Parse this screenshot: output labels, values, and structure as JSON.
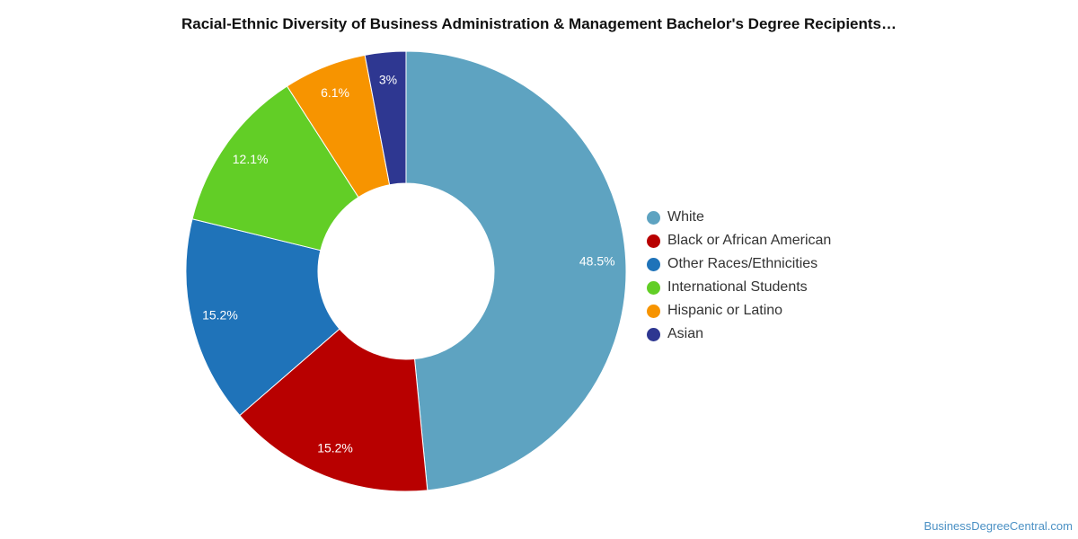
{
  "chart_data": {
    "type": "pie",
    "title": "Racial-Ethnic Diversity of Business Administration & Management Bachelor's Degree Recipients…",
    "donut": true,
    "legend_position": "right",
    "slices": [
      {
        "label": "White",
        "value": 48.5,
        "display": "48.5%",
        "color": "#5ea3c1"
      },
      {
        "label": "Black or African American",
        "value": 15.2,
        "display": "15.2%",
        "color": "#b80000"
      },
      {
        "label": "Other Races/Ethnicities",
        "value": 15.2,
        "display": "15.2%",
        "color": "#1f73b9"
      },
      {
        "label": "International Students",
        "value": 12.1,
        "display": "12.1%",
        "color": "#62ce26"
      },
      {
        "label": "Hispanic or Latino",
        "value": 6.1,
        "display": "6.1%",
        "color": "#f79400"
      },
      {
        "label": "Asian",
        "value": 3,
        "display": "3%",
        "color": "#2e3791"
      }
    ]
  },
  "source": "BusinessDegreeCentral.com"
}
